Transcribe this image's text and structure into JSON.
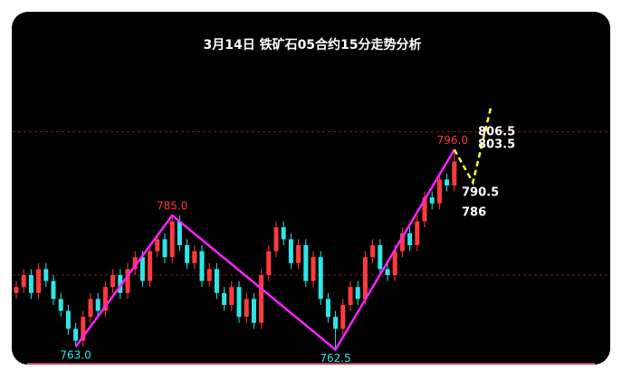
{
  "chart_data": {
    "type": "candlestick",
    "title": "3月14日  铁矿石05合约15分走势分析",
    "ylim": [
      760,
      806
    ],
    "up_color": "#ff3b3b",
    "down_color": "#2ee6e6",
    "open": [
      772,
      773,
      775,
      772,
      776,
      774,
      771,
      769,
      766,
      764,
      768,
      771,
      769,
      773,
      775,
      772,
      776,
      778,
      774,
      779,
      781,
      778,
      784,
      780,
      777,
      779,
      774,
      776,
      772,
      770,
      773,
      768,
      771,
      767,
      775,
      779,
      783,
      781,
      777,
      780,
      774,
      778,
      771,
      768,
      766,
      770,
      773,
      771,
      778,
      780,
      776,
      775,
      779,
      782,
      780,
      784,
      788,
      787,
      791,
      790
    ],
    "high": [
      774,
      776,
      776,
      777,
      777,
      775,
      772,
      770,
      767,
      769,
      772,
      772,
      774,
      776,
      776,
      777,
      779,
      779,
      780,
      782,
      782,
      785,
      785,
      781,
      780,
      780,
      777,
      777,
      773,
      774,
      774,
      772,
      772,
      776,
      780,
      784,
      784,
      782,
      781,
      781,
      779,
      779,
      772,
      769,
      771,
      774,
      774,
      779,
      781,
      781,
      777,
      780,
      783,
      783,
      785,
      789,
      789,
      792,
      792,
      796
    ],
    "low": [
      771,
      772,
      771,
      771,
      773,
      770,
      768,
      765,
      763,
      763,
      767,
      768,
      768,
      772,
      771,
      771,
      775,
      773,
      773,
      778,
      777,
      777,
      779,
      776,
      776,
      773,
      773,
      771,
      769,
      769,
      767,
      767,
      766,
      766,
      774,
      778,
      780,
      776,
      776,
      773,
      773,
      770,
      767,
      762.5,
      765,
      769,
      770,
      770,
      777,
      775,
      774,
      774,
      778,
      779,
      779,
      783,
      786,
      786,
      789,
      789
    ],
    "close": [
      773,
      775,
      772,
      776,
      774,
      771,
      769,
      766,
      764,
      768,
      771,
      769,
      773,
      775,
      772,
      776,
      778,
      774,
      779,
      781,
      778,
      784,
      780,
      777,
      779,
      774,
      776,
      772,
      770,
      773,
      768,
      771,
      767,
      775,
      779,
      783,
      781,
      777,
      780,
      774,
      778,
      771,
      768,
      766,
      770,
      773,
      771,
      778,
      780,
      776,
      775,
      779,
      782,
      780,
      784,
      788,
      787,
      791,
      790,
      794
    ],
    "reference_lines": [
      799,
      775
    ],
    "reference_color": "#8b1a1a",
    "zigzag": {
      "color": "#ff22ff",
      "x": [
        8,
        21,
        43,
        59
      ],
      "values": [
        763,
        785,
        762.5,
        796
      ],
      "value_labels": [
        "763.0",
        "785.0",
        "762.5",
        "796.0"
      ]
    },
    "projection": {
      "color": "#ffff33",
      "x": [
        59,
        61.5,
        64
      ],
      "values": [
        796,
        790.5,
        803.5
      ]
    },
    "targets": [
      "806.5",
      "803.5",
      "790.5",
      "786"
    ]
  }
}
